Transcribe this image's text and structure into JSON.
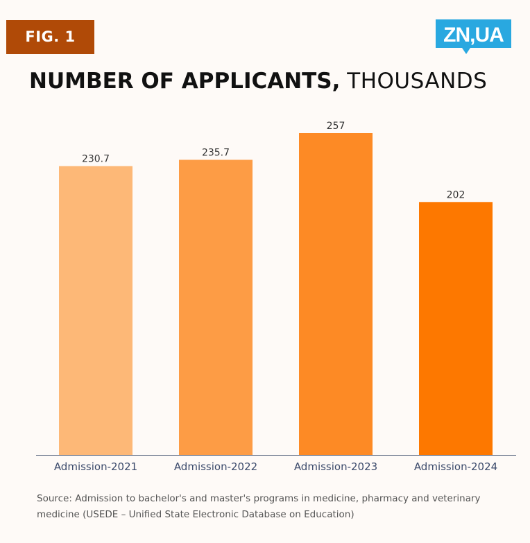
{
  "badge": {
    "label": "FIG. 1"
  },
  "logo": {
    "text": "ZN,UA",
    "color": "#29a8e0",
    "icon": "zn-ua-logo"
  },
  "title": {
    "main": "NUMBER OF APPLICANTS,",
    "sub": "THOUSANDS"
  },
  "source": "Source: Admission to bachelor's and master's programs in medicine, pharmacy and veterinary medicine (USEDE – Unified State Electronic Database on Education)",
  "colors": {
    "background": "#fefaf7",
    "badge": "#b04a07",
    "axis": "#5a6780",
    "category_label": "#3b4a6b",
    "value_label": "#333333"
  },
  "chart_data": {
    "type": "bar",
    "title": "NUMBER OF APPLICANTS, THOUSANDS",
    "categories": [
      "Admission-2021",
      "Admission-2022",
      "Admission-2023",
      "Admission-2024"
    ],
    "values": [
      230.7,
      235.7,
      257,
      202
    ],
    "value_labels": [
      "230.7",
      "235.7",
      "257",
      "202"
    ],
    "bar_colors": [
      "#fdb877",
      "#fd9c45",
      "#fd8a25",
      "#fd7800"
    ],
    "ylim": [
      0,
      257
    ],
    "grid": false,
    "legend": "none"
  }
}
